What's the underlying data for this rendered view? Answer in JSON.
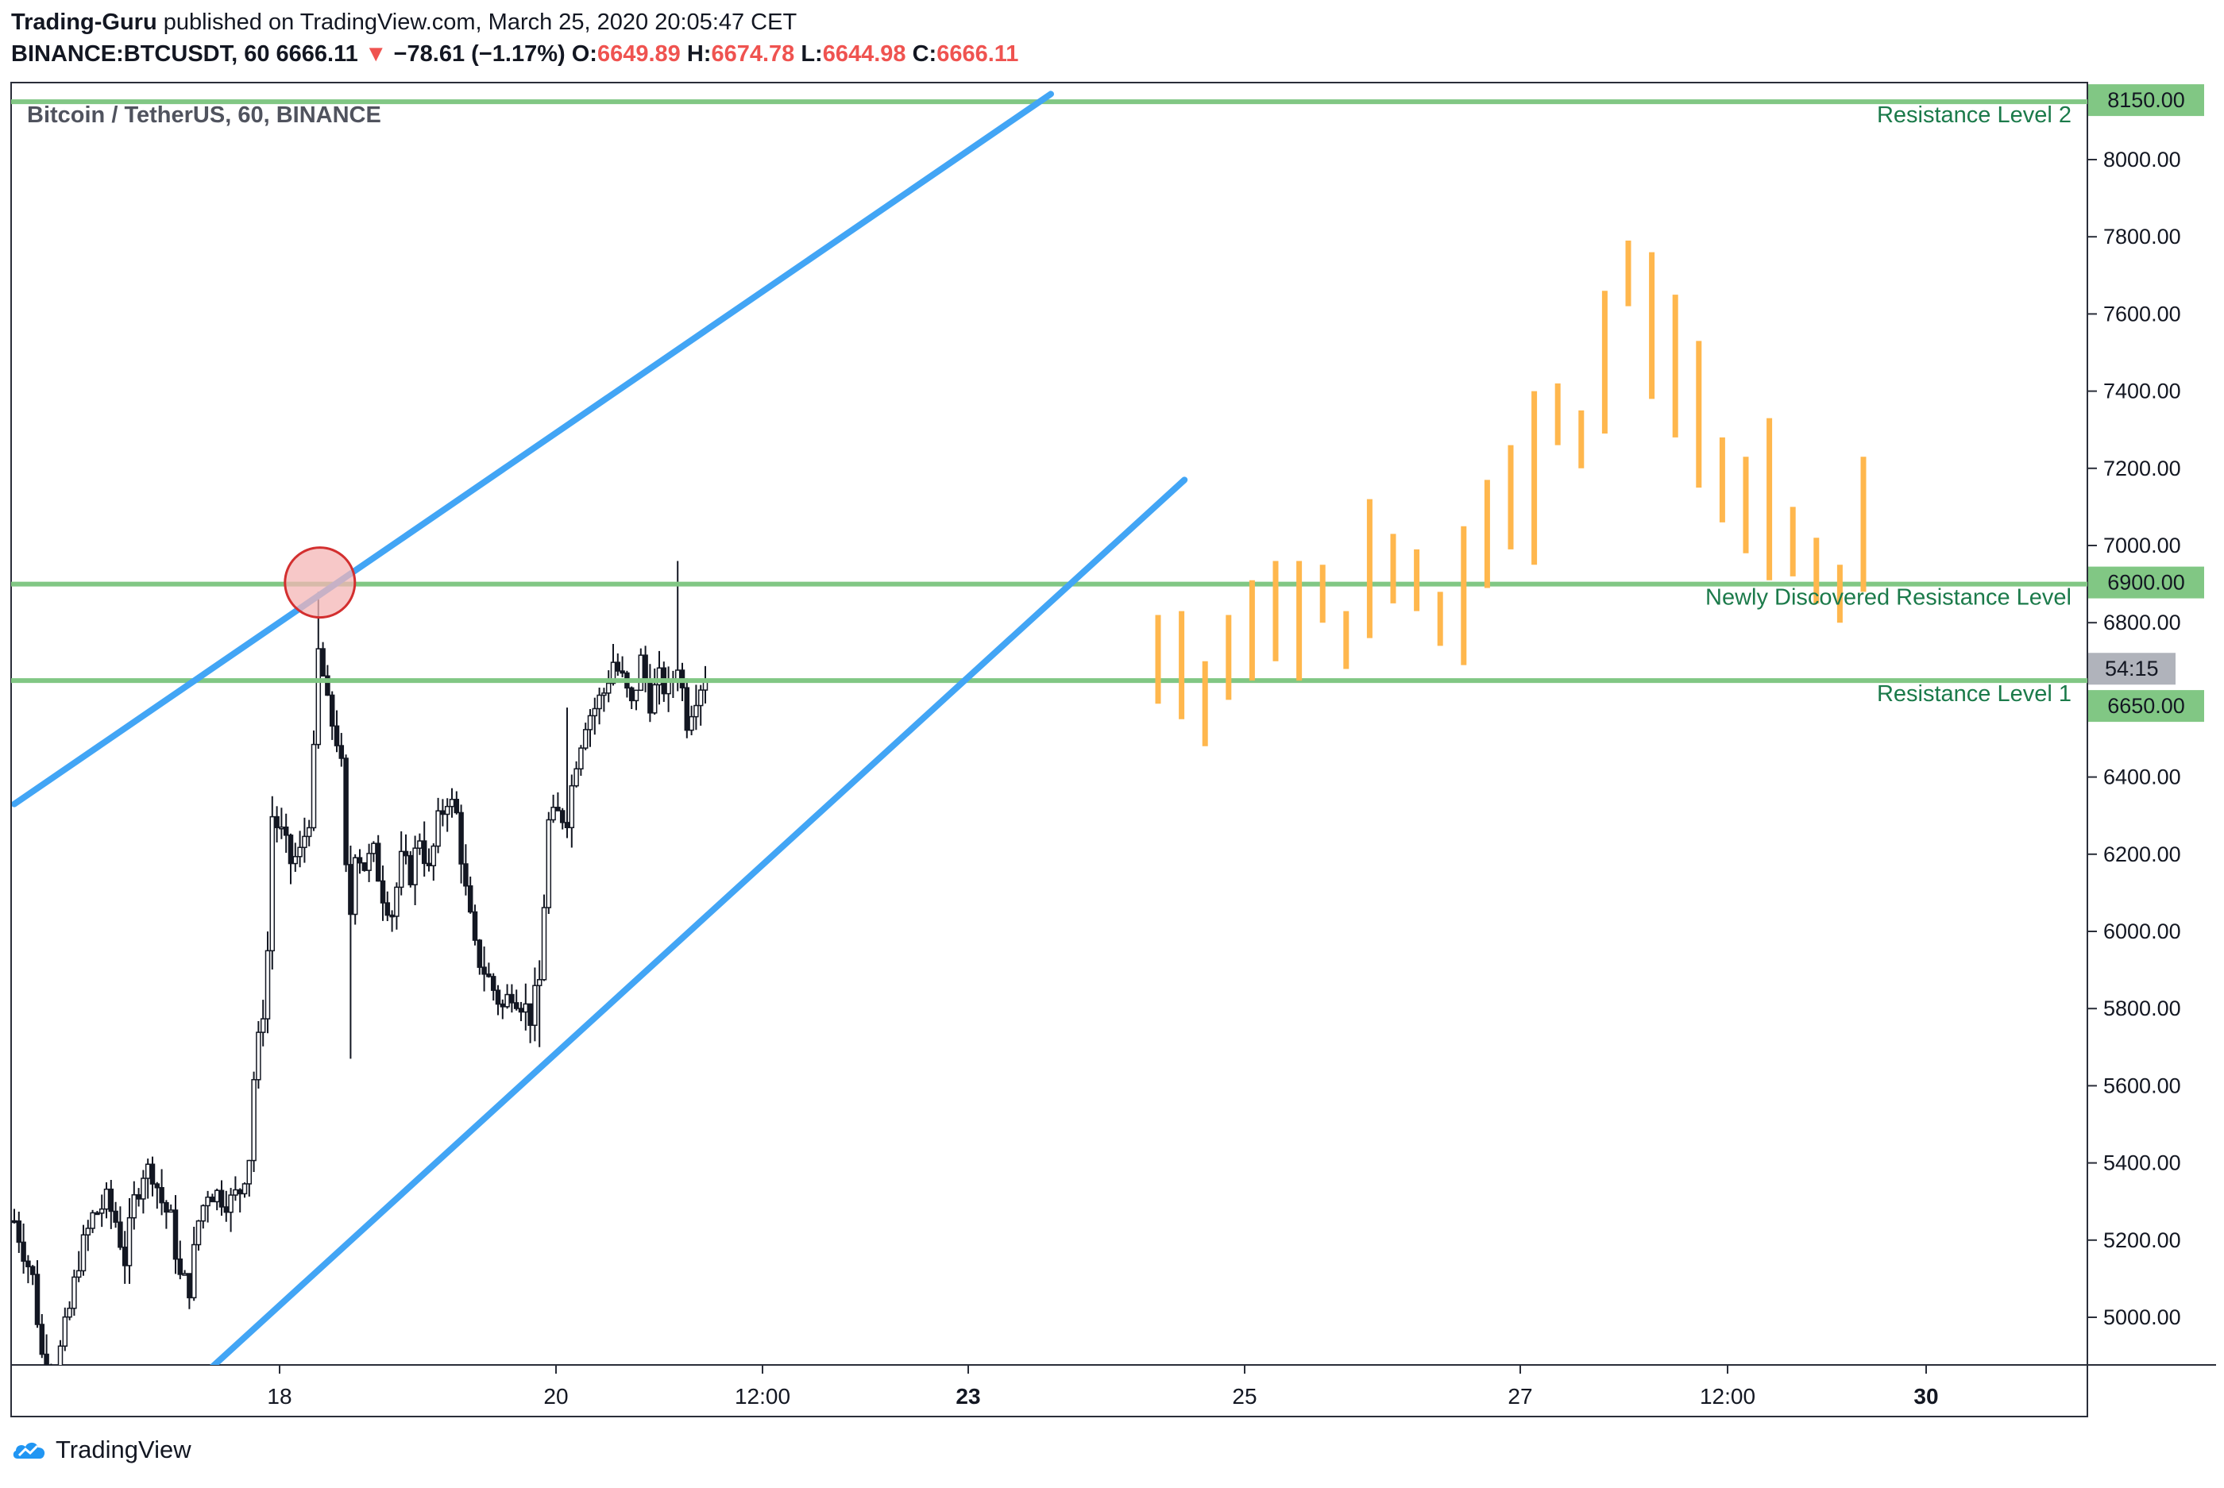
{
  "header": {
    "author": "Trading-Guru",
    "published": " published on TradingView.com, March 25, 2020 20:05:47 CET",
    "symbol": "BINANCE:BTCUSDT, 60",
    "last": "6666.11",
    "change": "−78.61 (−1.17%)",
    "o_label": "O:",
    "o_value": "6649.89",
    "h_label": "H:",
    "h_value": "6674.78",
    "l_label": "L:",
    "l_value": "6644.98",
    "c_label": "C:",
    "c_value": "6666.11"
  },
  "chart_title": "Bitcoin / TetherUS, 60, BINANCE",
  "footer": {
    "brand": "TradingView"
  },
  "colors": {
    "candle": "#131722",
    "level_line": "#81c784",
    "channel": "#42a5f5",
    "projection": "#ffb74d",
    "level_text": "#1b7a4a",
    "circle_fill": "#f4b6b6",
    "circle_stroke": "#d32f2f",
    "axis_bg_green": "#81c784",
    "countdown_bg": "#b0b3bb"
  },
  "chart_data": {
    "type": "candlestick",
    "y_range": [
      4850,
      8200
    ],
    "y_ticks": [
      "8000.00",
      "7800.00",
      "7600.00",
      "7400.00",
      "7200.00",
      "7000.00",
      "6800.00",
      "6400.00",
      "6200.00",
      "6000.00",
      "5800.00",
      "5600.00",
      "5400.00",
      "5200.00",
      "5000.00"
    ],
    "x_ticks": [
      {
        "label": "18",
        "bold": false
      },
      {
        "label": "20",
        "bold": false
      },
      {
        "label": "12:00",
        "bold": false
      },
      {
        "label": "23",
        "bold": true
      },
      {
        "label": "25",
        "bold": false
      },
      {
        "label": "27",
        "bold": false
      },
      {
        "label": "12:00",
        "bold": false
      },
      {
        "label": "30",
        "bold": true
      }
    ],
    "horizontal_levels": [
      {
        "name": "Resistance Level 2",
        "price": 8150,
        "label": "8150.00"
      },
      {
        "name": "Newly Discovered Resistance Level",
        "price": 6900,
        "label": "6900.00"
      },
      {
        "name": "Resistance Level 1",
        "price": 6650,
        "label": "6650.00"
      }
    ],
    "countdown": "54:15",
    "channel_lines": [
      {
        "name": "upper",
        "p1": {
          "t": 0,
          "price": 6330
        },
        "p2": {
          "t": 225,
          "price": 8170
        }
      },
      {
        "name": "lower",
        "p1": {
          "t": 41,
          "price": 4850
        },
        "p2": {
          "t": 254,
          "price": 7170
        }
      }
    ],
    "highlight_circle": {
      "t": 66,
      "price": 6900
    },
    "price_path_keys": [
      [
        0,
        5250
      ],
      [
        4,
        5100
      ],
      [
        6,
        4900
      ],
      [
        9,
        4860
      ],
      [
        12,
        5020
      ],
      [
        14,
        5150
      ],
      [
        17,
        5260
      ],
      [
        20,
        5300
      ],
      [
        22,
        5250
      ],
      [
        24,
        5150
      ],
      [
        26,
        5300
      ],
      [
        28,
        5380
      ],
      [
        30,
        5380
      ],
      [
        32,
        5300
      ],
      [
        34,
        5250
      ],
      [
        36,
        5100
      ],
      [
        38,
        5080
      ],
      [
        40,
        5250
      ],
      [
        42,
        5330
      ],
      [
        44,
        5320
      ],
      [
        47,
        5300
      ],
      [
        49,
        5330
      ],
      [
        51,
        5420
      ],
      [
        52,
        5620
      ],
      [
        54,
        5800
      ],
      [
        55,
        5950
      ],
      [
        56,
        6300
      ],
      [
        58,
        6250
      ],
      [
        60,
        6180
      ],
      [
        62,
        6200
      ],
      [
        64,
        6300
      ],
      [
        65,
        6450
      ],
      [
        66,
        6720
      ],
      [
        67,
        6660
      ],
      [
        68,
        6580
      ],
      [
        70,
        6500
      ],
      [
        71,
        6420
      ],
      [
        72,
        6150
      ],
      [
        73,
        6050
      ],
      [
        74,
        6220
      ],
      [
        76,
        6170
      ],
      [
        78,
        6200
      ],
      [
        80,
        6100
      ],
      [
        82,
        6050
      ],
      [
        84,
        6180
      ],
      [
        86,
        6150
      ],
      [
        88,
        6250
      ],
      [
        90,
        6150
      ],
      [
        92,
        6280
      ],
      [
        94,
        6350
      ],
      [
        96,
        6300
      ],
      [
        98,
        6100
      ],
      [
        100,
        5950
      ],
      [
        102,
        5900
      ],
      [
        104,
        5850
      ],
      [
        106,
        5800
      ],
      [
        108,
        5850
      ],
      [
        110,
        5820
      ],
      [
        112,
        5780
      ],
      [
        114,
        5870
      ],
      [
        116,
        6280
      ],
      [
        118,
        6300
      ],
      [
        120,
        6300
      ],
      [
        122,
        6450
      ],
      [
        124,
        6550
      ],
      [
        126,
        6580
      ],
      [
        128,
        6620
      ],
      [
        130,
        6700
      ],
      [
        132,
        6650
      ],
      [
        134,
        6580
      ],
      [
        136,
        6700
      ],
      [
        137,
        6650
      ],
      [
        138,
        6600
      ],
      [
        140,
        6650
      ],
      [
        142,
        6620
      ],
      [
        144,
        6700
      ],
      [
        146,
        6550
      ],
      [
        148,
        6620
      ],
      [
        150,
        6666
      ]
    ],
    "projected_bars": [
      [
        6590,
        6820
      ],
      [
        6550,
        6830
      ],
      [
        6480,
        6700
      ],
      [
        6600,
        6820
      ],
      [
        6650,
        6910
      ],
      [
        6700,
        6960
      ],
      [
        6650,
        6960
      ],
      [
        6800,
        6950
      ],
      [
        6680,
        6830
      ],
      [
        6760,
        7120
      ],
      [
        6850,
        7030
      ],
      [
        6830,
        6990
      ],
      [
        6740,
        6880
      ],
      [
        6690,
        7050
      ],
      [
        6890,
        7170
      ],
      [
        6990,
        7260
      ],
      [
        6950,
        7400
      ],
      [
        7260,
        7420
      ],
      [
        7200,
        7350
      ],
      [
        7290,
        7660
      ],
      [
        7620,
        7790
      ],
      [
        7380,
        7760
      ],
      [
        7280,
        7650
      ],
      [
        7150,
        7530
      ],
      [
        7060,
        7280
      ],
      [
        6980,
        7230
      ],
      [
        6910,
        7330
      ],
      [
        6920,
        7100
      ],
      [
        6850,
        7020
      ],
      [
        6800,
        6950
      ],
      [
        6880,
        7230
      ]
    ]
  }
}
